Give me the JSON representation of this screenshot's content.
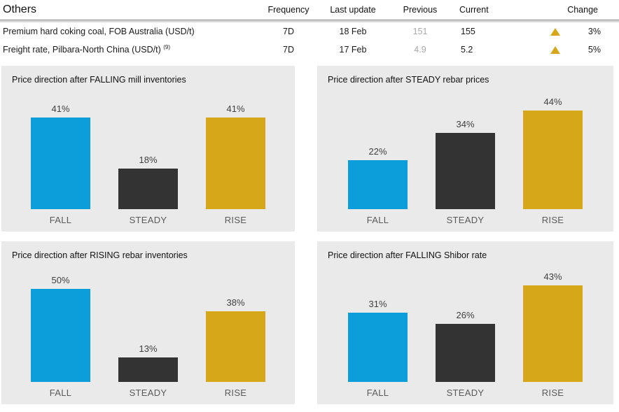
{
  "table": {
    "title": "Others",
    "columns": {
      "frequency": "Frequency",
      "last_update": "Last update",
      "previous": "Previous",
      "current": "Current",
      "change": "Change"
    },
    "rows": [
      {
        "name": "Premium hard coking coal, FOB Australia (USD/t)",
        "footnote": "",
        "frequency": "7D",
        "last_update": "18 Feb",
        "previous": "151",
        "current": "155",
        "change_direction": "up",
        "change": "3%"
      },
      {
        "name": "Freight rate, Pilbara-North China (USD/t)",
        "footnote": "(9)",
        "frequency": "7D",
        "last_update": "17 Feb",
        "previous": "4.9",
        "current": "5.2",
        "change_direction": "up",
        "change": "5%"
      }
    ]
  },
  "colors": {
    "fall_bar": "#0b9eda",
    "steady_bar": "#333333",
    "rise_bar": "#d6a819",
    "change_up_triangle": "#d6a819",
    "panel_background": "#eaeaea",
    "previous_text": "#a9a9a9"
  },
  "chart_data": [
    {
      "type": "bar",
      "title": "Price direction after FALLING mill inventories",
      "categories": [
        "FALL",
        "STEADY",
        "RISE"
      ],
      "values": [
        41,
        18,
        41
      ],
      "value_labels": [
        "41%",
        "18%",
        "41%"
      ],
      "ylabel": "",
      "xlabel": "",
      "ylim": [
        0,
        50
      ],
      "grid": false,
      "legend": "none"
    },
    {
      "type": "bar",
      "title": "Price direction after STEADY rebar prices",
      "categories": [
        "FALL",
        "STEADY",
        "RISE"
      ],
      "values": [
        22,
        34,
        44
      ],
      "value_labels": [
        "22%",
        "34%",
        "44%"
      ],
      "ylabel": "",
      "xlabel": "",
      "ylim": [
        0,
        50
      ],
      "grid": false,
      "legend": "none"
    },
    {
      "type": "bar",
      "title": "Price direction after RISING rebar inventories",
      "categories": [
        "FALL",
        "STEADY",
        "RISE"
      ],
      "values": [
        50,
        13,
        38
      ],
      "value_labels": [
        "50%",
        "13%",
        "38%"
      ],
      "ylabel": "",
      "xlabel": "",
      "ylim": [
        0,
        60
      ],
      "grid": false,
      "legend": "none"
    },
    {
      "type": "bar",
      "title": "Price direction after FALLING Shibor rate",
      "categories": [
        "FALL",
        "STEADY",
        "RISE"
      ],
      "values": [
        31,
        26,
        43
      ],
      "value_labels": [
        "31%",
        "26%",
        "43%"
      ],
      "ylabel": "",
      "xlabel": "",
      "ylim": [
        0,
        50
      ],
      "grid": false,
      "legend": "none"
    }
  ]
}
